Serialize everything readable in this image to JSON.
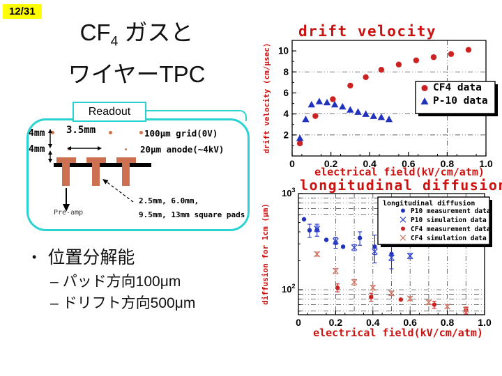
{
  "slide": {
    "page_number": "12/31",
    "title": {
      "line1_prefix": "CF",
      "line1_sub": "4",
      "line1_suffix": " ガスと",
      "line2": "ワイヤーTPC"
    }
  },
  "readout": {
    "label": "Readout"
  },
  "diagram": {
    "dim_top": "4mm",
    "dim_bottom": "4mm",
    "pitch": "3.5mm",
    "grid_label": "100μm grid(0V)",
    "anode_label": "20μm anode(~4kV)",
    "preamp_label": "Pre-amp",
    "pads_label_line1": "2.5mm, 6.0mm,",
    "pads_label_line2": "9.5mm, 13mm square pads",
    "colors": {
      "pad": "#cd7050",
      "border": "#2bd2d2",
      "highlight": "#ffff00"
    }
  },
  "bullets": {
    "marker": "•",
    "item": "位置分解能",
    "dash": "–",
    "sub_items": [
      "パッド方向100μm",
      "ドリフト方向500μm"
    ]
  },
  "chart_data": [
    {
      "type": "scatter",
      "title": "drift velocity",
      "xlabel": "electrical field(kV/cm/atm)",
      "ylabel": "drift velocity (cm/μsec)",
      "label_color": "#cc1111",
      "xlim": [
        0,
        1.0
      ],
      "ylim": [
        0,
        11
      ],
      "xticks": [
        0,
        0.2,
        0.4,
        0.6,
        0.8,
        1.0
      ],
      "xtick_labels": [
        "0",
        "0.2",
        "0.4",
        "0.6",
        "0.8",
        "1.0"
      ],
      "yticks": [
        2,
        4,
        6,
        8,
        10
      ],
      "grid_x": [
        0.8
      ],
      "grid_y": [
        2,
        4,
        8
      ],
      "legend_position": "right-middle",
      "series": [
        {
          "name": "CF4  data",
          "marker": "circle",
          "color": "#cc2222",
          "points": [
            [
              0.04,
              1.2
            ],
            [
              0.12,
              3.8
            ],
            [
              0.21,
              5.4
            ],
            [
              0.3,
              6.7
            ],
            [
              0.38,
              7.5
            ],
            [
              0.46,
              8.2
            ],
            [
              0.55,
              8.7
            ],
            [
              0.64,
              9.1
            ],
            [
              0.73,
              9.4
            ],
            [
              0.82,
              9.7
            ],
            [
              0.91,
              10.1
            ]
          ]
        },
        {
          "name": "P-10  data",
          "marker": "triangle",
          "color": "#2233bb",
          "points": [
            [
              0.04,
              1.7
            ],
            [
              0.07,
              3.5
            ],
            [
              0.1,
              4.9
            ],
            [
              0.14,
              5.2
            ],
            [
              0.18,
              5.1
            ],
            [
              0.22,
              4.9
            ],
            [
              0.26,
              4.7
            ],
            [
              0.3,
              4.4
            ],
            [
              0.34,
              4.2
            ],
            [
              0.38,
              4.0
            ],
            [
              0.42,
              3.8
            ],
            [
              0.46,
              3.7
            ],
            [
              0.5,
              3.5
            ]
          ]
        }
      ]
    },
    {
      "type": "scatter",
      "title": "longitudinal diffusion",
      "xlabel": "electrical field(kV/cm/atm)",
      "ylabel": "diffusion for 1cm (μm)",
      "label_color": "#cc1111",
      "xlim": [
        0,
        1.0
      ],
      "ylim": [
        55,
        1000
      ],
      "yscale": "log",
      "xticks": [
        0,
        0.2,
        0.4,
        0.6,
        0.8,
        1.0
      ],
      "xtick_labels": [
        "0",
        "0.2",
        "0.4",
        "0.6",
        "0.8",
        "1.0"
      ],
      "yticks": [
        100,
        1000
      ],
      "ytick_exponents": [
        "2",
        "3"
      ],
      "grid_x": [
        0.2,
        0.3,
        0.4,
        0.5,
        0.6,
        0.7,
        0.8,
        0.9
      ],
      "grid_y": [
        60,
        70,
        80,
        90,
        100,
        600,
        700,
        800,
        900
      ],
      "legend_title": "longitudinal diffusion",
      "series": [
        {
          "name": "P10  measurement  data",
          "marker": "circle",
          "color": "#2233bb",
          "points": [
            [
              0.03,
              540
            ],
            [
              0.06,
              415
            ],
            [
              0.1,
              420
            ],
            [
              0.15,
              330
            ],
            [
              0.2,
              310
            ],
            [
              0.24,
              280
            ],
            [
              0.33,
              345
            ],
            [
              0.41,
              280
            ],
            [
              0.5,
              235
            ]
          ],
          "yerr": [
            0,
            65,
            60,
            0,
            40,
            0,
            55,
            90,
            70
          ]
        },
        {
          "name": "P10  simulation  data",
          "marker": "x",
          "color": "#3344cc",
          "points": [
            [
              0.1,
              430
            ],
            [
              0.2,
              320
            ],
            [
              0.3,
              275
            ],
            [
              0.41,
              250
            ],
            [
              0.5,
              215
            ],
            [
              0.6,
              225
            ]
          ],
          "yerr": [
            30,
            25,
            20,
            18,
            15,
            15
          ]
        },
        {
          "name": "CF4  measurement  data",
          "marker": "circle",
          "color": "#cc2222",
          "points": [
            [
              0.21,
              105
            ],
            [
              0.39,
              84
            ],
            [
              0.55,
              79
            ],
            [
              0.73,
              70
            ],
            [
              0.9,
              61
            ]
          ],
          "yerr": [
            10,
            8,
            0,
            6,
            5
          ]
        },
        {
          "name": "CF4  simulation  data",
          "marker": "x",
          "color": "#cc7766",
          "points": [
            [
              0.1,
              235
            ],
            [
              0.2,
              157
            ],
            [
              0.3,
              120
            ],
            [
              0.4,
              105
            ],
            [
              0.5,
              92
            ],
            [
              0.6,
              81
            ],
            [
              0.7,
              74
            ],
            [
              0.8,
              67
            ],
            [
              0.9,
              62
            ]
          ],
          "yerr": [
            12,
            10,
            8,
            6,
            5,
            4,
            4,
            3,
            3
          ]
        }
      ]
    }
  ]
}
